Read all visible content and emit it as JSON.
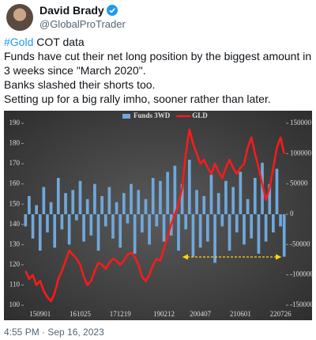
{
  "tweet": {
    "author": "David Brady",
    "handle": "@GlobalProTrader",
    "hashtag": "#Gold",
    "line1_rest": " COT data",
    "line2": "Funds have cut their net long position by the biggest amount in 3 weeks since \"March 2020\".",
    "line3": "Banks slashed their shorts too.",
    "line4": "Setting up for a big rally imho, sooner rather than later.",
    "timestamp": "4:55 PM · Sep 16, 2023"
  },
  "chart_data": {
    "type": "bar-line",
    "categories": [
      null,
      null,
      null,
      null,
      "150901",
      null,
      null,
      null,
      null,
      null,
      null,
      null,
      null,
      null,
      null,
      "161025",
      null,
      null,
      null,
      null,
      null,
      null,
      null,
      null,
      null,
      null,
      "171219",
      null,
      null,
      null,
      null,
      null,
      null,
      null,
      null,
      null,
      null,
      null,
      "190212",
      null,
      null,
      null,
      null,
      null,
      null,
      null,
      null,
      null,
      "200407",
      null,
      null,
      null,
      null,
      null,
      null,
      null,
      null,
      null,
      null,
      "210601",
      null,
      null,
      null,
      null,
      null,
      null,
      null,
      null,
      null,
      null,
      "220726",
      null
    ],
    "series": [
      {
        "name": "Funds 3WD",
        "type": "bar",
        "axis": "y2",
        "color": "#6fa8dc",
        "values": [
          -20000,
          30000,
          -40000,
          15000,
          -60000,
          45000,
          -30000,
          20000,
          -55000,
          60000,
          -25000,
          35000,
          -50000,
          40000,
          -10000,
          55000,
          -45000,
          25000,
          -35000,
          50000,
          -60000,
          30000,
          -20000,
          45000,
          -40000,
          20000,
          -55000,
          35000,
          -15000,
          50000,
          -65000,
          40000,
          -30000,
          25000,
          -50000,
          60000,
          -20000,
          55000,
          -45000,
          70000,
          -35000,
          80000,
          -60000,
          50000,
          -25000,
          90000,
          -70000,
          40000,
          -55000,
          30000,
          -45000,
          65000,
          -80000,
          35000,
          -20000,
          55000,
          -60000,
          45000,
          -30000,
          70000,
          -50000,
          25000,
          -40000,
          60000,
          -65000,
          85000,
          -45000,
          50000,
          -30000,
          75000,
          -20000,
          -70000
        ]
      },
      {
        "name": "GLD",
        "type": "line",
        "color": "#ff1a1a",
        "values": [
          117,
          113,
          115,
          110,
          112,
          107,
          104,
          102,
          106,
          113,
          117,
          122,
          127,
          125,
          123,
          120,
          114,
          110,
          112,
          117,
          121,
          120,
          118,
          121,
          123,
          122,
          120,
          122,
          125,
          126,
          124,
          120,
          114,
          112,
          115,
          120,
          123,
          122,
          128,
          134,
          140,
          145,
          150,
          158,
          175,
          187,
          180,
          175,
          170,
          172,
          168,
          165,
          170,
          166,
          163,
          168,
          172,
          168,
          165,
          168,
          170,
          178,
          183,
          175,
          168,
          160,
          152,
          158,
          168,
          178,
          183,
          175
        ]
      }
    ],
    "ylim": [
      100,
      190
    ],
    "yticks": [
      100,
      110,
      120,
      130,
      140,
      150,
      160,
      170,
      180,
      190
    ],
    "y2lim": [
      -150000,
      150000
    ],
    "y2ticks": [
      -150000,
      -100000,
      -50000,
      0,
      50000,
      100000,
      150000
    ],
    "legend": "top"
  }
}
